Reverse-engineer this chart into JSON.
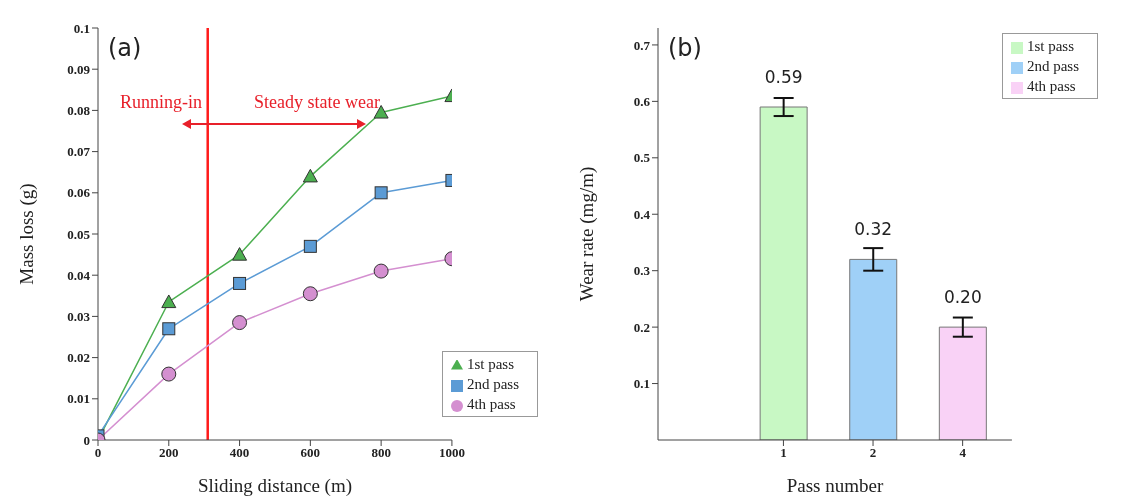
{
  "chart_data": [
    {
      "type": "line",
      "xlabel": "Sliding distance (m)",
      "ylabel": "Mass loss (g)",
      "x": [
        0,
        200,
        400,
        600,
        800,
        1000
      ],
      "xlim": [
        0,
        1000
      ],
      "xticks": [
        0,
        200,
        400,
        600,
        800,
        1000
      ],
      "ylim": [
        0,
        0.1
      ],
      "yticks": [
        0,
        0.01,
        0.02,
        0.03,
        0.04,
        0.05,
        0.06,
        0.07,
        0.08,
        0.09,
        0.1
      ],
      "grid": false,
      "legend": "bottom right",
      "annotations": [
        "(a)",
        "Running-in",
        "Steady state wear"
      ],
      "ref_lines": [
        {
          "axis": "x",
          "value": 310,
          "color": "#ff1a1a"
        }
      ],
      "series": [
        {
          "name": "1st  pass",
          "color": "#4caf50",
          "marker": "triangle",
          "values": [
            0,
            0.0335,
            0.045,
            0.064,
            0.0795,
            0.0835
          ]
        },
        {
          "name": "2nd pass",
          "color": "#5b9bd5",
          "marker": "square",
          "values": [
            0.001,
            0.027,
            0.038,
            0.047,
            0.06,
            0.063
          ]
        },
        {
          "name": "4th pass",
          "color": "#d48fd0",
          "marker": "circle",
          "values": [
            0,
            0.016,
            0.0285,
            0.0355,
            0.041,
            0.044
          ]
        }
      ]
    },
    {
      "type": "bar",
      "xlabel": "Pass number",
      "ylabel": "Wear rate (mg/m)",
      "categories": [
        "1",
        "2",
        "4"
      ],
      "ylim": [
        0,
        0.73
      ],
      "yticks": [
        0.1,
        0.2,
        0.3,
        0.4,
        0.5,
        0.6,
        0.7
      ],
      "grid": false,
      "legend": "top right",
      "stacked": true,
      "annotations": [
        "(b)"
      ],
      "series": [
        {
          "name": "1st  pass",
          "color": "#c8f8c4",
          "values": [
            0.59,
            null,
            null
          ],
          "value_labels": [
            "0.59",
            null,
            null
          ],
          "errors": [
            0.016,
            null,
            null
          ]
        },
        {
          "name": "2nd pass",
          "color": "#9fd0f7",
          "values": [
            null,
            0.32,
            null
          ],
          "value_labels": [
            null,
            "0.32",
            null
          ],
          "errors": [
            null,
            0.02,
            null
          ]
        },
        {
          "name": "4th pass",
          "color": "#f9d2f6",
          "values": [
            null,
            null,
            0.2
          ],
          "value_labels": [
            null,
            null,
            "0.20"
          ],
          "errors": [
            null,
            null,
            0.017
          ]
        }
      ]
    }
  ]
}
